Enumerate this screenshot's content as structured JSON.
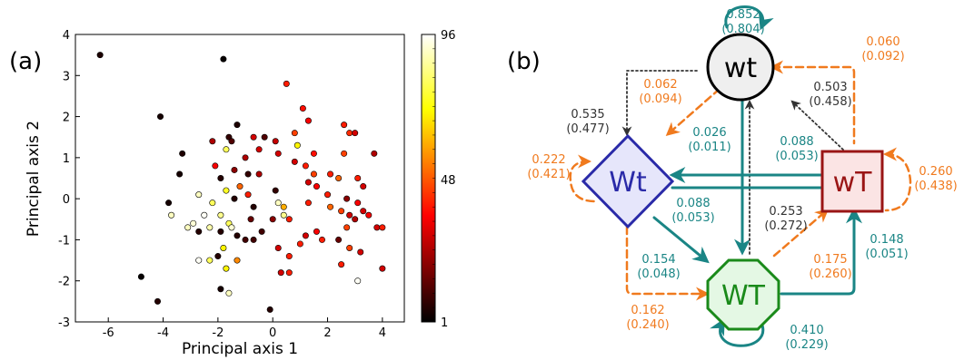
{
  "colors": {
    "teal": "#1a8585",
    "orange": "#f07a1e",
    "dark": "#333333"
  },
  "panel_a": {
    "label": "(a)",
    "chart_data": {
      "type": "scatter",
      "xlabel": "Principal axis 1",
      "ylabel": "Principal axis 2",
      "xlim": [
        -7.2,
        4.8
      ],
      "ylim": [
        -3,
        4
      ],
      "xticks": [
        "-6",
        "-4",
        "-2",
        "0",
        "2",
        "4"
      ],
      "yticks": [
        "-3",
        "-2",
        "-1",
        "0",
        "1",
        "2",
        "3",
        "4"
      ],
      "colorbar": {
        "min": 1,
        "max": 96,
        "ticks": [
          "1",
          "48",
          "96"
        ],
        "colormap": "hot"
      },
      "points": [
        {
          "x": -6.3,
          "y": 3.5,
          "c": 5
        },
        {
          "x": -1.8,
          "y": 3.4,
          "c": 2
        },
        {
          "x": -4.1,
          "y": 2.0,
          "c": 4
        },
        {
          "x": -1.9,
          "y": 0.5,
          "c": 6
        },
        {
          "x": 0.5,
          "y": 2.8,
          "c": 40
        },
        {
          "x": 1.1,
          "y": 2.2,
          "c": 38
        },
        {
          "x": 1.3,
          "y": 1.9,
          "c": 35
        },
        {
          "x": 2.6,
          "y": 1.8,
          "c": 40
        },
        {
          "x": -1.3,
          "y": 1.8,
          "c": 5
        },
        {
          "x": 0.8,
          "y": 1.6,
          "c": 45
        },
        {
          "x": 2.8,
          "y": 1.6,
          "c": 42
        },
        {
          "x": 3.0,
          "y": 1.6,
          "c": 30
        },
        {
          "x": -0.7,
          "y": 1.5,
          "c": 30
        },
        {
          "x": -0.3,
          "y": 1.5,
          "c": 12
        },
        {
          "x": -2.2,
          "y": 1.4,
          "c": 25
        },
        {
          "x": -1.6,
          "y": 1.5,
          "c": 8
        },
        {
          "x": -1.5,
          "y": 1.4,
          "c": 12
        },
        {
          "x": 0.1,
          "y": 1.4,
          "c": 28
        },
        {
          "x": 0.9,
          "y": 1.3,
          "c": 70
        },
        {
          "x": -1.7,
          "y": 1.2,
          "c": 80
        },
        {
          "x": -0.5,
          "y": 1.2,
          "c": 30
        },
        {
          "x": -3.3,
          "y": 1.1,
          "c": 5
        },
        {
          "x": 0.2,
          "y": 1.1,
          "c": 30
        },
        {
          "x": 1.5,
          "y": 1.1,
          "c": 38
        },
        {
          "x": 2.6,
          "y": 1.1,
          "c": 45
        },
        {
          "x": 3.7,
          "y": 1.1,
          "c": 25
        },
        {
          "x": -1.0,
          "y": 1.0,
          "c": 25
        },
        {
          "x": 0.8,
          "y": 0.9,
          "c": 30
        },
        {
          "x": 1.2,
          "y": 0.8,
          "c": 40
        },
        {
          "x": -2.1,
          "y": 0.8,
          "c": 35
        },
        {
          "x": -1.4,
          "y": 0.7,
          "c": 20
        },
        {
          "x": -3.4,
          "y": 0.6,
          "c": 4
        },
        {
          "x": -0.9,
          "y": 0.6,
          "c": 8
        },
        {
          "x": -0.5,
          "y": 0.6,
          "c": 25
        },
        {
          "x": 1.5,
          "y": 0.6,
          "c": 45
        },
        {
          "x": 2.1,
          "y": 0.6,
          "c": 40
        },
        {
          "x": 2.4,
          "y": 0.5,
          "c": 50
        },
        {
          "x": 3.1,
          "y": 0.5,
          "c": 40
        },
        {
          "x": 1.3,
          "y": 0.4,
          "c": 30
        },
        {
          "x": 1.6,
          "y": 0.3,
          "c": 35
        },
        {
          "x": 3.3,
          "y": 0.3,
          "c": 30
        },
        {
          "x": -1.2,
          "y": 0.3,
          "c": 50
        },
        {
          "x": -2.7,
          "y": 0.1,
          "c": 90
        },
        {
          "x": -1.7,
          "y": 0.2,
          "c": 75
        },
        {
          "x": -1.4,
          "y": 0.0,
          "c": 6
        },
        {
          "x": -0.9,
          "y": 0.1,
          "c": 40
        },
        {
          "x": 0.1,
          "y": 0.2,
          "c": 8
        },
        {
          "x": 2.0,
          "y": 0.1,
          "c": 40
        },
        {
          "x": 2.7,
          "y": 0.0,
          "c": 20
        },
        {
          "x": 3.1,
          "y": -0.1,
          "c": 35
        },
        {
          "x": -3.8,
          "y": -0.1,
          "c": 4
        },
        {
          "x": -2.2,
          "y": -0.1,
          "c": 80
        },
        {
          "x": -0.7,
          "y": -0.2,
          "c": 6
        },
        {
          "x": 0.2,
          "y": -0.1,
          "c": 90
        },
        {
          "x": 0.4,
          "y": -0.2,
          "c": 60
        },
        {
          "x": 1.3,
          "y": -0.1,
          "c": 40
        },
        {
          "x": 2.1,
          "y": -0.2,
          "c": 50
        },
        {
          "x": 2.5,
          "y": -0.3,
          "c": 45
        },
        {
          "x": 3.3,
          "y": -0.3,
          "c": 30
        },
        {
          "x": -2.5,
          "y": -0.4,
          "c": 95
        },
        {
          "x": -3.7,
          "y": -0.4,
          "c": 90
        },
        {
          "x": -1.9,
          "y": -0.4,
          "c": 85
        },
        {
          "x": 0.4,
          "y": -0.4,
          "c": 85
        },
        {
          "x": 2.8,
          "y": -0.4,
          "c": 30
        },
        {
          "x": 3.5,
          "y": -0.4,
          "c": 35
        },
        {
          "x": -2.9,
          "y": -0.6,
          "c": 92
        },
        {
          "x": -1.6,
          "y": -0.6,
          "c": 80
        },
        {
          "x": -0.8,
          "y": -0.5,
          "c": 15
        },
        {
          "x": 0.0,
          "y": -0.5,
          "c": 20
        },
        {
          "x": 0.6,
          "y": -0.5,
          "c": 40
        },
        {
          "x": 3.0,
          "y": -0.5,
          "c": 25
        },
        {
          "x": -3.1,
          "y": -0.7,
          "c": 90
        },
        {
          "x": -2.3,
          "y": -0.7,
          "c": 88
        },
        {
          "x": -1.5,
          "y": -0.7,
          "c": 92
        },
        {
          "x": -1.9,
          "y": -0.8,
          "c": 6
        },
        {
          "x": -0.4,
          "y": -0.8,
          "c": 10
        },
        {
          "x": 1.6,
          "y": -0.8,
          "c": 35
        },
        {
          "x": 2.7,
          "y": -0.7,
          "c": 45
        },
        {
          "x": 3.8,
          "y": -0.7,
          "c": 30
        },
        {
          "x": 4.0,
          "y": -0.7,
          "c": 40
        },
        {
          "x": -1.3,
          "y": -0.9,
          "c": 6
        },
        {
          "x": -2.7,
          "y": -0.8,
          "c": 6
        },
        {
          "x": 1.2,
          "y": -0.9,
          "c": 30
        },
        {
          "x": 1.8,
          "y": -1.0,
          "c": 40
        },
        {
          "x": 2.4,
          "y": -1.0,
          "c": 15
        },
        {
          "x": -1.0,
          "y": -1.0,
          "c": 10
        },
        {
          "x": -0.7,
          "y": -1.0,
          "c": 10
        },
        {
          "x": 1.0,
          "y": -1.1,
          "c": 40
        },
        {
          "x": -1.8,
          "y": -1.2,
          "c": 70
        },
        {
          "x": 0.2,
          "y": -1.2,
          "c": 30
        },
        {
          "x": 2.8,
          "y": -1.2,
          "c": 45
        },
        {
          "x": 3.2,
          "y": -1.3,
          "c": 30
        },
        {
          "x": -2.0,
          "y": -1.4,
          "c": 6
        },
        {
          "x": 0.6,
          "y": -1.4,
          "c": 40
        },
        {
          "x": -2.3,
          "y": -1.5,
          "c": 80
        },
        {
          "x": -2.7,
          "y": -1.5,
          "c": 95
        },
        {
          "x": -1.3,
          "y": -1.5,
          "c": 55
        },
        {
          "x": -1.7,
          "y": -1.7,
          "c": 70
        },
        {
          "x": 2.5,
          "y": -1.6,
          "c": 40
        },
        {
          "x": 4.0,
          "y": -1.7,
          "c": 30
        },
        {
          "x": 0.3,
          "y": -1.8,
          "c": 30
        },
        {
          "x": 0.6,
          "y": -1.8,
          "c": 40
        },
        {
          "x": -4.8,
          "y": -1.9,
          "c": 2
        },
        {
          "x": 3.1,
          "y": -2.0,
          "c": 95
        },
        {
          "x": -1.9,
          "y": -2.2,
          "c": 4
        },
        {
          "x": -1.6,
          "y": -2.3,
          "c": 90
        },
        {
          "x": -4.2,
          "y": -2.5,
          "c": 6
        },
        {
          "x": -0.1,
          "y": -2.7,
          "c": 6
        }
      ]
    }
  },
  "panel_b": {
    "label": "(b)",
    "nodes": [
      {
        "id": "wt",
        "label": "wt"
      },
      {
        "id": "Wt",
        "label": "Wt"
      },
      {
        "id": "wT",
        "label": "wT"
      },
      {
        "id": "WT",
        "label": "WT"
      }
    ],
    "edges": [
      {
        "from": "wt",
        "to": "wt",
        "label": "0.852\n(0.804)",
        "color": "teal"
      },
      {
        "from": "wt",
        "to": "wT",
        "label": "0.060\n(0.092)",
        "color": "orange"
      },
      {
        "from": "wt",
        "to": "Wt",
        "label": "0.062\n(0.094)",
        "color": "orange"
      },
      {
        "from": "Wt",
        "to": "wt",
        "label": "0.535\n(0.477)",
        "color": "dark"
      },
      {
        "from": "wT",
        "to": "wt",
        "label": "0.503\n(0.458)",
        "color": "dark"
      },
      {
        "from": "wt",
        "to": "WT",
        "label": "0.026\n(0.011)",
        "color": "teal"
      },
      {
        "from": "wT",
        "to": "Wt",
        "label": "0.088\n(0.053)",
        "color": "teal"
      },
      {
        "from": "Wt",
        "to": "wT",
        "label": "0.088\n(0.053)",
        "color": "teal"
      },
      {
        "from": "Wt",
        "to": "Wt",
        "label": "0.222\n(0.421)",
        "color": "orange"
      },
      {
        "from": "wT",
        "to": "wT",
        "label": "0.260\n(0.438)",
        "color": "orange"
      },
      {
        "from": "WT",
        "to": "wt",
        "label": "0.253\n(0.272)",
        "color": "dark"
      },
      {
        "from": "Wt",
        "to": "WT",
        "label": "0.154\n(0.048)",
        "color": "teal"
      },
      {
        "from": "WT",
        "to": "wT",
        "label": "0.175\n(0.260)",
        "color": "orange"
      },
      {
        "from": "wT",
        "to": "WT",
        "label": "0.148\n(0.051)",
        "color": "teal"
      },
      {
        "from": "Wt",
        "to": "WT",
        "label": "0.162\n(0.240)",
        "color": "orange"
      },
      {
        "from": "WT",
        "to": "WT",
        "label": "0.410\n(0.229)",
        "color": "teal"
      }
    ]
  }
}
